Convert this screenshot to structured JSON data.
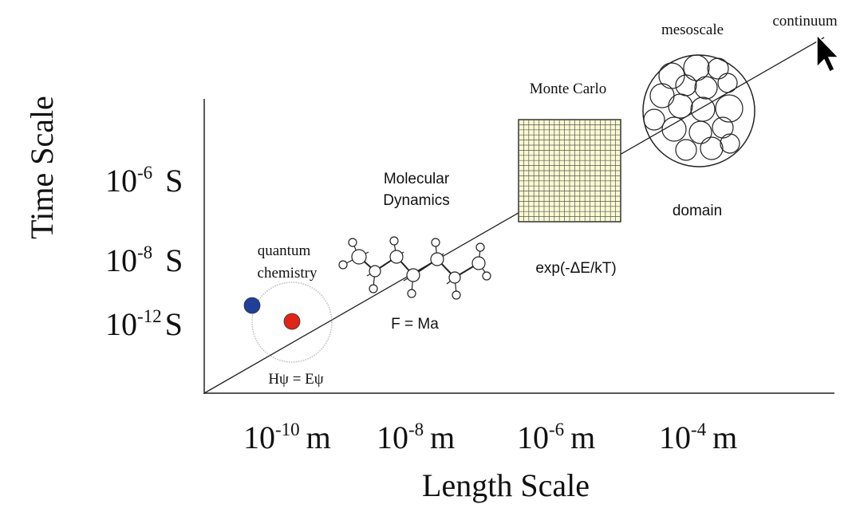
{
  "axes": {
    "y_title": "Time Scale",
    "x_title": "Length Scale",
    "y_ticks": [
      {
        "base": "10",
        "exp": "-6",
        "unit": "S"
      },
      {
        "base": "10",
        "exp": "-8",
        "unit": "S"
      },
      {
        "base": "10",
        "exp": "-12",
        "unit": "S"
      }
    ],
    "x_ticks": [
      {
        "base": "10",
        "exp": "-10",
        "unit": "m"
      },
      {
        "base": "10",
        "exp": "-8",
        "unit": "m"
      },
      {
        "base": "10",
        "exp": "-6",
        "unit": "m"
      },
      {
        "base": "10",
        "exp": "-4",
        "unit": "m"
      }
    ]
  },
  "regions": {
    "quantum": {
      "line1": "quantum",
      "line2": "chemistry",
      "equation": "Hψ = Eψ"
    },
    "md": {
      "line1": "Molecular",
      "line2": "Dynamics",
      "equation": "F = Ma"
    },
    "mc": {
      "title": "Monte Carlo",
      "equation": "exp(-ΔE/kT)"
    },
    "meso": {
      "title": "mesoscale",
      "caption": "domain"
    },
    "continuum": {
      "title": "continuum"
    }
  },
  "colors": {
    "electron": "#1f3f9a",
    "nucleus": "#e02418",
    "grid_fill": "#fafad2"
  }
}
